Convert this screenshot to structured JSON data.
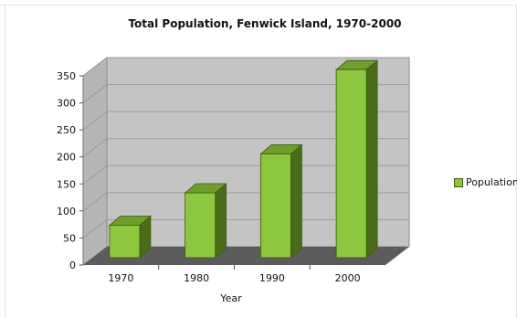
{
  "chart_data": {
    "type": "bar",
    "title": "Total Population, Fenwick Island, 1970-2000",
    "categories": [
      "1970",
      "1980",
      "1990",
      "2000"
    ],
    "series": [
      {
        "name": "Population",
        "values": [
          60,
          120,
          192,
          348
        ]
      }
    ],
    "xlabel": "Year",
    "ylabel": "",
    "ylim": [
      0,
      350
    ],
    "yticks": [
      0,
      50,
      100,
      150,
      200,
      250,
      300,
      350
    ],
    "legend_position": "right",
    "grid": true,
    "three_d": true,
    "colors": {
      "bar_front": "#8dc63f",
      "bar_top": "#6f9e2a",
      "bar_side": "#4a6c18",
      "bar_stroke": "#3b5a12",
      "wall": "#c4c4c4",
      "floor": "#5c5c5c",
      "grid": "#9a9a9a"
    }
  }
}
